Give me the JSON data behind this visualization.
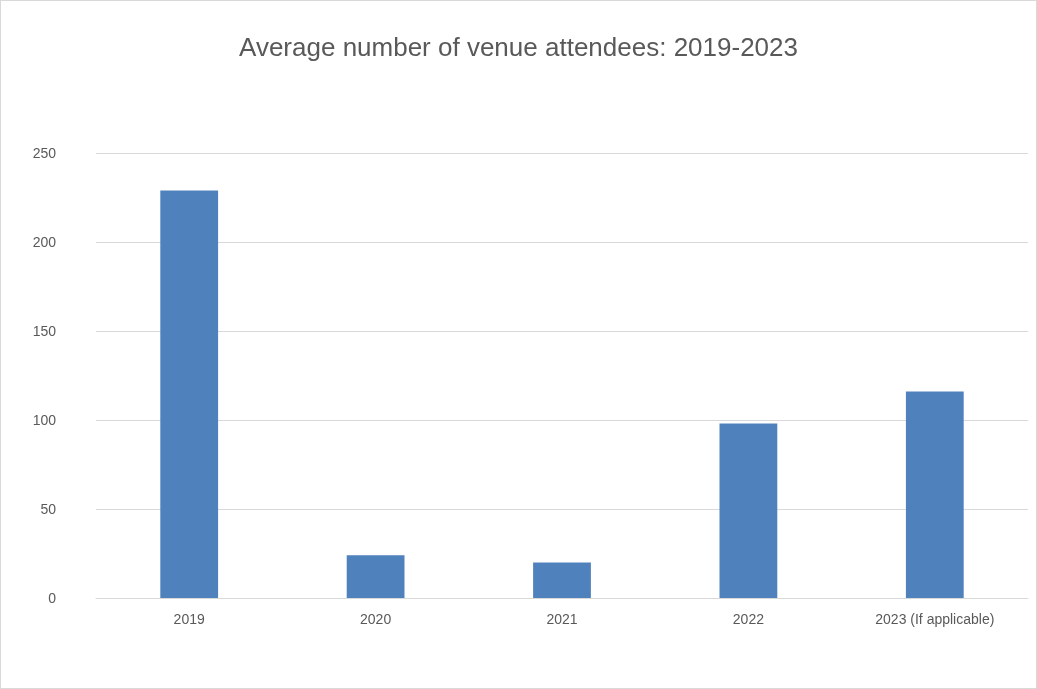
{
  "chart_data": {
    "type": "bar",
    "title": "Average number of venue attendees: 2019-2023",
    "categories": [
      "2019",
      "2020",
      "2021",
      "2022",
      "2023 (If applicable)"
    ],
    "values": [
      229,
      24,
      20,
      98,
      116
    ],
    "color": "#4f81bd",
    "ylim": [
      0,
      250
    ],
    "yticks": [
      0,
      50,
      100,
      150,
      200,
      250
    ],
    "grid": "y"
  }
}
